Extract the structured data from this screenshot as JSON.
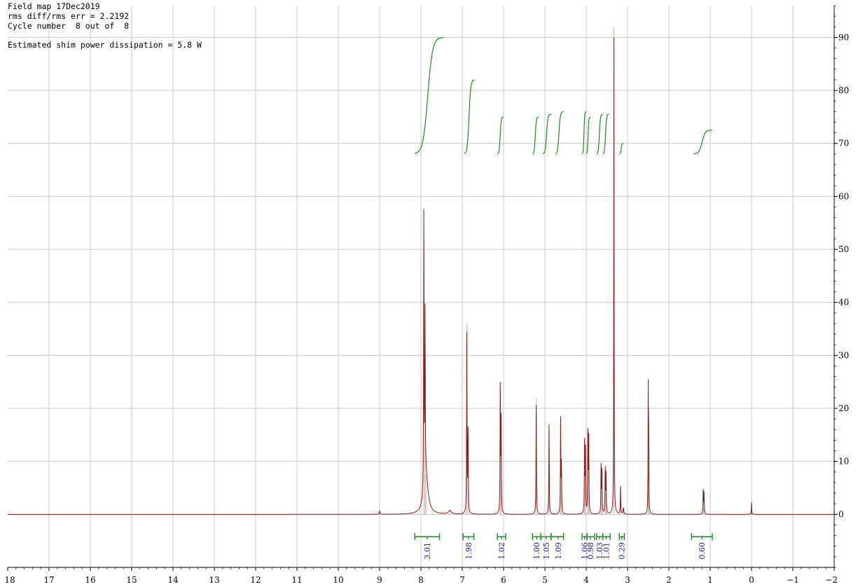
{
  "header": {
    "line1": "Field map 17Dec2019",
    "line2": "rms diff/rms err = 2.2192",
    "line3": "Cycle number  8 out of  8",
    "line4": "Estimated shim power dissipation = 5.8 W"
  },
  "colors": {
    "spectrum": "#8b1a1a",
    "integral": "#1e8a1e",
    "integral_label": "#1a1a9c",
    "grid": "#c8c8c8",
    "axis": "#000000"
  },
  "chart_data": {
    "type": "line",
    "title": "",
    "xlabel": "",
    "ylabel": "",
    "x_axis_reversed": true,
    "xlim": [
      18,
      -2
    ],
    "ylim": [
      -10,
      96
    ],
    "x_ticks": [
      "18",
      "17",
      "16",
      "15",
      "14",
      "13",
      "12",
      "11",
      "10",
      "9",
      "8",
      "7",
      "6",
      "5",
      "4",
      "3",
      "2",
      "1",
      "0",
      "−1",
      "−2"
    ],
    "y_ticks": [
      "0",
      "10",
      "20",
      "30",
      "40",
      "50",
      "60",
      "70",
      "80",
      "90"
    ],
    "y_axis_side": "right",
    "grid": true,
    "peaks": [
      {
        "ppm": 9.0,
        "height": 0.6,
        "width": 0.01
      },
      {
        "ppm": 7.93,
        "height": 53,
        "width": 0.006
      },
      {
        "ppm": 7.9,
        "height": 31,
        "width": 0.006
      },
      {
        "ppm": 7.88,
        "height": 7.5,
        "width": 0.06
      },
      {
        "ppm": 7.3,
        "height": 0.7,
        "width": 0.04
      },
      {
        "ppm": 6.89,
        "height": 36,
        "width": 0.006
      },
      {
        "ppm": 6.86,
        "height": 16,
        "width": 0.006
      },
      {
        "ppm": 6.08,
        "height": 24,
        "width": 0.006
      },
      {
        "ppm": 6.06,
        "height": 18,
        "width": 0.006
      },
      {
        "ppm": 5.21,
        "height": 22,
        "width": 0.006
      },
      {
        "ppm": 4.9,
        "height": 17,
        "width": 0.006
      },
      {
        "ppm": 4.62,
        "height": 18,
        "width": 0.006
      },
      {
        "ppm": 4.6,
        "height": 9,
        "width": 0.006
      },
      {
        "ppm": 4.04,
        "height": 14,
        "width": 0.006
      },
      {
        "ppm": 4.02,
        "height": 12,
        "width": 0.006
      },
      {
        "ppm": 3.96,
        "height": 16,
        "width": 0.006
      },
      {
        "ppm": 3.94,
        "height": 15,
        "width": 0.006
      },
      {
        "ppm": 3.64,
        "height": 9.5,
        "width": 0.006
      },
      {
        "ppm": 3.62,
        "height": 8,
        "width": 0.006
      },
      {
        "ppm": 3.54,
        "height": 8.8,
        "width": 0.006
      },
      {
        "ppm": 3.52,
        "height": 7.5,
        "width": 0.006
      },
      {
        "ppm": 3.33,
        "height": 92,
        "width": 0.005
      },
      {
        "ppm": 3.17,
        "height": 5.3,
        "width": 0.006
      },
      {
        "ppm": 3.1,
        "height": 1.2,
        "width": 0.01
      },
      {
        "ppm": 2.5,
        "height": 22.5,
        "width": 0.005
      },
      {
        "ppm": 2.49,
        "height": 15,
        "width": 0.005
      },
      {
        "ppm": 1.17,
        "height": 4.5,
        "width": 0.006
      },
      {
        "ppm": 1.15,
        "height": 4.0,
        "width": 0.006
      },
      {
        "ppm": 0.0,
        "height": 2.3,
        "width": 0.005
      }
    ],
    "integral_curves": [
      {
        "from": 8.15,
        "to": 7.45,
        "y_start": 68,
        "y_end": 90
      },
      {
        "from": 6.95,
        "to": 6.7,
        "y_start": 68,
        "y_end": 82
      },
      {
        "from": 6.15,
        "to": 6.0,
        "y_start": 68,
        "y_end": 75
      },
      {
        "from": 5.3,
        "to": 5.15,
        "y_start": 68,
        "y_end": 75
      },
      {
        "from": 5.05,
        "to": 4.85,
        "y_start": 68,
        "y_end": 75.5
      },
      {
        "from": 4.75,
        "to": 4.55,
        "y_start": 68,
        "y_end": 76
      },
      {
        "from": 4.1,
        "to": 4.0,
        "y_start": 68,
        "y_end": 76
      },
      {
        "from": 4.0,
        "to": 3.9,
        "y_start": 68,
        "y_end": 75
      },
      {
        "from": 3.75,
        "to": 3.6,
        "y_start": 68,
        "y_end": 75.5
      },
      {
        "from": 3.6,
        "to": 3.45,
        "y_start": 68,
        "y_end": 75.5
      },
      {
        "from": 3.2,
        "to": 3.1,
        "y_start": 68,
        "y_end": 70
      },
      {
        "from": 1.4,
        "to": 0.95,
        "y_start": 68,
        "y_end": 72.5
      }
    ],
    "integrals": [
      {
        "label": "3.01",
        "from": 8.15,
        "to": 7.55,
        "center": 7.85
      },
      {
        "label": "1.98",
        "from": 6.98,
        "to": 6.72,
        "center": 6.85
      },
      {
        "label": "1.02",
        "from": 6.15,
        "to": 5.95,
        "center": 6.05
      },
      {
        "label": "1.00",
        "from": 5.3,
        "to": 5.1,
        "center": 5.2
      },
      {
        "label": "1.05",
        "from": 5.1,
        "to": 4.85,
        "center": 4.97
      },
      {
        "label": "1.09",
        "from": 4.85,
        "to": 4.55,
        "center": 4.68
      },
      {
        "label": "1.06",
        "from": 4.1,
        "to": 3.98,
        "center": 4.04
      },
      {
        "label": "0.98",
        "from": 3.98,
        "to": 3.8,
        "center": 3.9
      },
      {
        "label": "1.03",
        "from": 3.75,
        "to": 3.6,
        "center": 3.68
      },
      {
        "label": "1.01",
        "from": 3.6,
        "to": 3.42,
        "center": 3.52
      },
      {
        "label": "0.29",
        "from": 3.2,
        "to": 3.08,
        "center": 3.14
      },
      {
        "label": "0.60",
        "from": 1.45,
        "to": 0.95,
        "center": 1.2
      }
    ]
  }
}
